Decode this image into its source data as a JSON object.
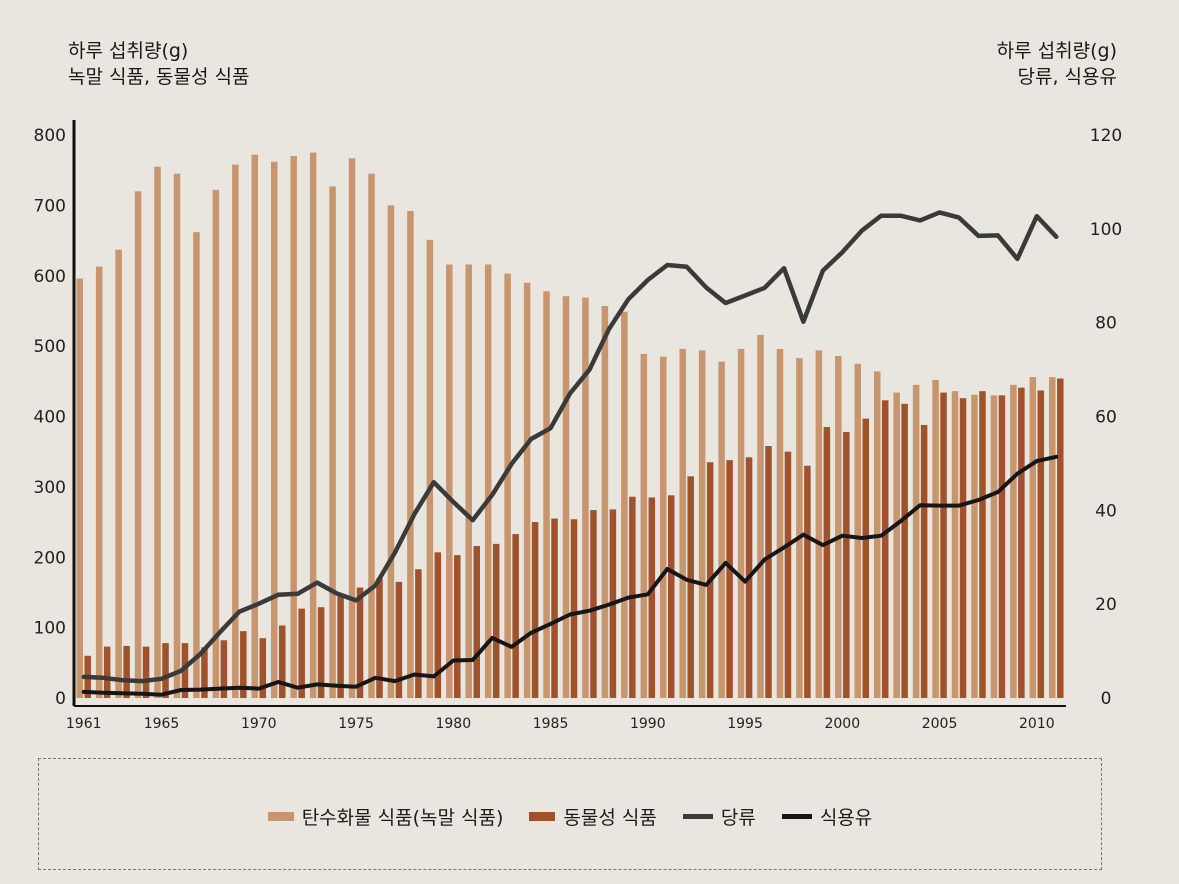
{
  "left_axis_title": [
    "하루 섭취량(g)",
    "녹말 식품, 동물성 식품"
  ],
  "right_axis_title": [
    "하루 섭취량(g)",
    "당류, 식용유"
  ],
  "legend": [
    {
      "label": "탄수화물 식품(녹말 식품)",
      "kind": "bar",
      "color": "#c8966e"
    },
    {
      "label": "동물성 식품",
      "kind": "bar",
      "color": "#a0522d"
    },
    {
      "label": "당류",
      "kind": "line",
      "color": "#3a3a3a"
    },
    {
      "label": "식용유",
      "kind": "line",
      "color": "#161616"
    }
  ],
  "chart_data": {
    "type": "bar",
    "x": [
      1961,
      1962,
      1963,
      1964,
      1965,
      1966,
      1967,
      1968,
      1969,
      1970,
      1971,
      1972,
      1973,
      1974,
      1975,
      1976,
      1977,
      1978,
      1979,
      1980,
      1981,
      1982,
      1983,
      1984,
      1985,
      1986,
      1987,
      1988,
      1989,
      1990,
      1991,
      1992,
      1993,
      1994,
      1995,
      1996,
      1997,
      1998,
      1999,
      2000,
      2001,
      2002,
      2003,
      2004,
      2005,
      2006,
      2007,
      2008,
      2009,
      2010,
      2011
    ],
    "x_tick_labels": [
      "1961",
      "1965",
      "1970",
      "1975",
      "1980",
      "1985",
      "1990",
      "1995",
      "2000",
      "2005",
      "2010"
    ],
    "x_tick_values": [
      1961,
      1965,
      1970,
      1975,
      1980,
      1985,
      1990,
      1995,
      2000,
      2005,
      2010
    ],
    "y_left": {
      "ticks": [
        0,
        100,
        200,
        300,
        400,
        500,
        600,
        700,
        800
      ],
      "lim": [
        0,
        800
      ]
    },
    "y_right": {
      "ticks": [
        0,
        20,
        40,
        60,
        80,
        100,
        120
      ],
      "lim": [
        0,
        120
      ]
    },
    "series": [
      {
        "name": "탄수화물 식품(녹말 식품)",
        "kind": "bar",
        "axis": "left",
        "color": "#c8966e",
        "values": [
          596,
          613,
          637,
          720,
          755,
          745,
          662,
          722,
          758,
          772,
          762,
          770,
          775,
          727,
          767,
          745,
          700,
          692,
          651,
          616,
          616,
          616,
          603,
          590,
          578,
          571,
          569,
          557,
          549,
          489,
          485,
          496,
          494,
          478,
          496,
          516,
          496,
          483,
          494,
          486,
          475,
          464,
          434,
          445,
          452,
          436,
          431,
          430,
          445,
          456,
          456
        ]
      },
      {
        "name": "동물성 식품",
        "kind": "bar",
        "axis": "left",
        "color": "#a0522d",
        "values": [
          60,
          73,
          74,
          73,
          78,
          78,
          72,
          82,
          95,
          85,
          103,
          127,
          129,
          145,
          157,
          170,
          165,
          183,
          207,
          203,
          216,
          219,
          233,
          250,
          255,
          254,
          267,
          268,
          286,
          285,
          288,
          315,
          335,
          338,
          342,
          358,
          350,
          330,
          385,
          378,
          397,
          423,
          418,
          388,
          434,
          426,
          436,
          430,
          441,
          437,
          454
        ]
      },
      {
        "name": "당류",
        "kind": "line",
        "axis": "right",
        "color": "#3a3a3a",
        "values": [
          4.5,
          4.3,
          3.8,
          3.6,
          4.1,
          5.8,
          9.4,
          14.0,
          18.4,
          20.1,
          22.0,
          22.2,
          24.6,
          22.3,
          20.8,
          24.0,
          31.0,
          39.2,
          46.0,
          41.8,
          37.9,
          43.3,
          49.9,
          55.2,
          57.5,
          64.9,
          70.0,
          78.6,
          85.0,
          89.1,
          92.3,
          91.9,
          87.5,
          84.2,
          85.8,
          87.4,
          91.6,
          80.2,
          91.1,
          95.0,
          99.6,
          102.8,
          102.8,
          101.8,
          103.5,
          102.4,
          98.5,
          98.6,
          93.6,
          102.7,
          98.3
        ]
      },
      {
        "name": "식용유",
        "kind": "line",
        "axis": "right",
        "color": "#161616",
        "values": [
          1.3,
          1.1,
          1.0,
          0.9,
          0.7,
          1.7,
          1.8,
          2.0,
          2.2,
          2.0,
          3.4,
          2.2,
          2.9,
          2.6,
          2.4,
          4.3,
          3.6,
          5.0,
          4.6,
          8.0,
          8.1,
          12.8,
          10.9,
          13.9,
          15.8,
          17.8,
          18.6,
          19.9,
          21.4,
          22.1,
          27.5,
          25.2,
          24.1,
          28.8,
          24.8,
          29.5,
          32.1,
          34.8,
          32.6,
          34.6,
          34.1,
          34.6,
          37.7,
          41.1,
          41.0,
          41.0,
          42.2,
          43.9,
          47.8,
          50.5,
          51.4
        ]
      }
    ]
  }
}
